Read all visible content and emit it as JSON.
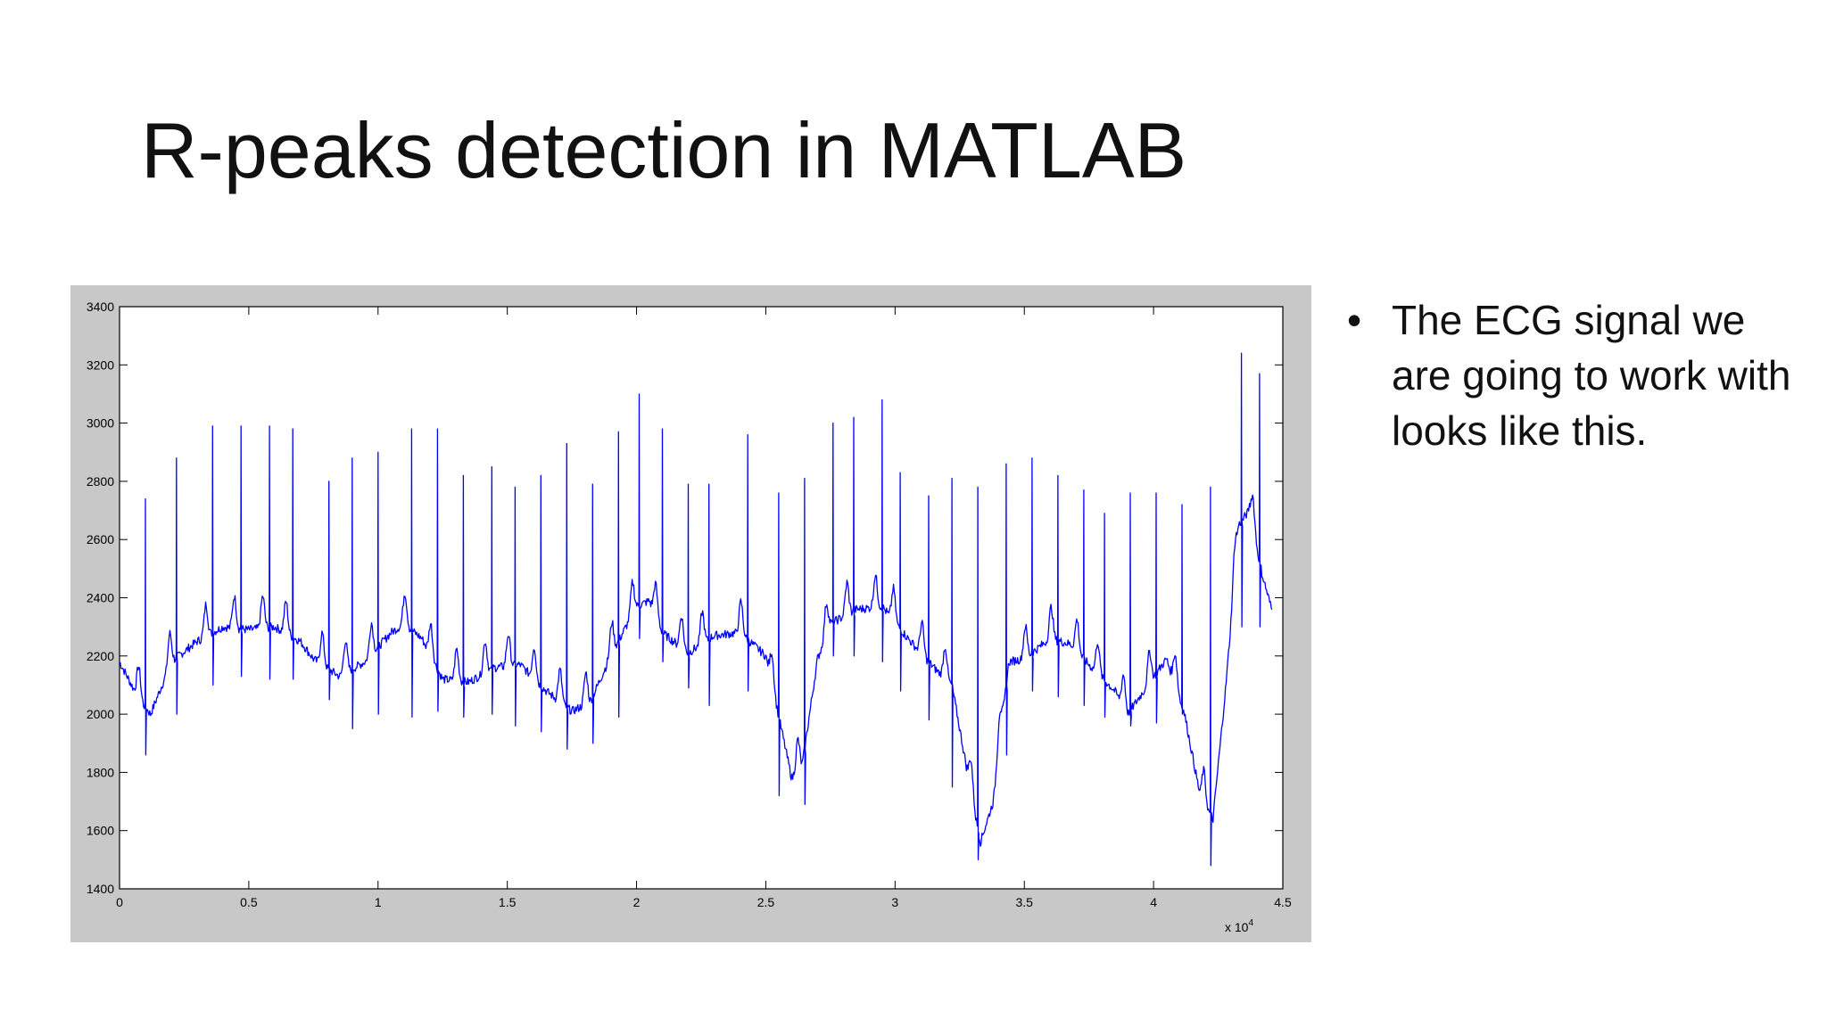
{
  "slide": {
    "title": "R-peaks detection in MATLAB",
    "bullets": [
      {
        "text": "The ECG signal we are going to work with looks like this."
      }
    ]
  },
  "chart_data": {
    "type": "line",
    "title": "",
    "xlabel": "",
    "ylabel": "",
    "xlim": [
      0,
      45000
    ],
    "ylim": [
      1400,
      3400
    ],
    "x_tick_labels": [
      "0",
      "0.5",
      "1",
      "1.5",
      "2",
      "2.5",
      "3",
      "3.5",
      "4",
      "4.5"
    ],
    "x_tick_values": [
      0,
      5000,
      10000,
      15000,
      20000,
      25000,
      30000,
      35000,
      40000,
      45000
    ],
    "x_exponent_label": "x 10",
    "x_exponent_power": "4",
    "y_tick_labels": [
      "1400",
      "1600",
      "1800",
      "2000",
      "2200",
      "2400",
      "2600",
      "2800",
      "3000",
      "3200",
      "3400"
    ],
    "y_tick_values": [
      1400,
      1600,
      1800,
      2000,
      2200,
      2400,
      2600,
      2800,
      3000,
      3200,
      3400
    ],
    "grid": false,
    "line_color": "#0000ff",
    "series": [
      {
        "baseline_points": [
          [
            0,
            2180
          ],
          [
            700,
            2060
          ],
          [
            1200,
            2000
          ],
          [
            2000,
            2180
          ],
          [
            3000,
            2250
          ],
          [
            4000,
            2300
          ],
          [
            5000,
            2290
          ],
          [
            6000,
            2300
          ],
          [
            7000,
            2250
          ],
          [
            7500,
            2190
          ],
          [
            8500,
            2130
          ],
          [
            9500,
            2180
          ],
          [
            10500,
            2280
          ],
          [
            11000,
            2310
          ],
          [
            11700,
            2260
          ],
          [
            12500,
            2120
          ],
          [
            13500,
            2110
          ],
          [
            14500,
            2160
          ],
          [
            15500,
            2170
          ],
          [
            16500,
            2080
          ],
          [
            17500,
            2010
          ],
          [
            18200,
            2040
          ],
          [
            19000,
            2200
          ],
          [
            20000,
            2370
          ],
          [
            20500,
            2390
          ],
          [
            21000,
            2280
          ],
          [
            22000,
            2210
          ],
          [
            23000,
            2270
          ],
          [
            24000,
            2280
          ],
          [
            25000,
            2200
          ],
          [
            25600,
            1950
          ],
          [
            26000,
            1780
          ],
          [
            26400,
            1820
          ],
          [
            27000,
            2190
          ],
          [
            27500,
            2310
          ],
          [
            28500,
            2360
          ],
          [
            29500,
            2370
          ],
          [
            30500,
            2260
          ],
          [
            31500,
            2160
          ],
          [
            32200,
            2100
          ],
          [
            32800,
            1800
          ],
          [
            33300,
            1560
          ],
          [
            33800,
            1700
          ],
          [
            34400,
            2180
          ],
          [
            35000,
            2190
          ],
          [
            36000,
            2260
          ],
          [
            36800,
            2240
          ],
          [
            37500,
            2170
          ],
          [
            38500,
            2080
          ],
          [
            39000,
            2000
          ],
          [
            39700,
            2090
          ],
          [
            40500,
            2190
          ],
          [
            41200,
            2000
          ],
          [
            41800,
            1720
          ],
          [
            42300,
            1640
          ],
          [
            42800,
            2100
          ],
          [
            43300,
            2650
          ],
          [
            43700,
            2700
          ],
          [
            44200,
            2480
          ],
          [
            44600,
            2350
          ]
        ],
        "r_peak_x": [
          1000,
          2200,
          3600,
          4700,
          5800,
          6700,
          8100,
          9000,
          10000,
          11300,
          12300,
          13300,
          14400,
          15300,
          16300,
          17300,
          18300,
          19300,
          20100,
          21000,
          22000,
          22800,
          24300,
          25500,
          26500,
          27600,
          28400,
          29500,
          30200,
          31300,
          32200,
          33200,
          34300,
          35300,
          36300,
          37300,
          38100,
          39100,
          40100,
          41100,
          42200,
          43400,
          44100
        ],
        "r_peak_y": [
          2740,
          2880,
          2990,
          2990,
          2990,
          2980,
          2800,
          2880,
          2900,
          2980,
          2980,
          2820,
          2850,
          2780,
          2820,
          2930,
          2790,
          2970,
          3100,
          2980,
          2790,
          2790,
          2960,
          2760,
          2810,
          3000,
          3020,
          3080,
          2830,
          2750,
          2810,
          2780,
          2860,
          2880,
          2820,
          2770,
          2690,
          2760,
          2760,
          2720,
          2780,
          3240,
          3170
        ],
        "q_dip_y": [
          1860,
          2000,
          2100,
          2130,
          2120,
          2120,
          2050,
          1950,
          2000,
          1990,
          2010,
          1990,
          2000,
          1960,
          1940,
          1880,
          1900,
          1990,
          2260,
          2180,
          2090,
          2030,
          2080,
          1720,
          1690,
          2200,
          2200,
          2180,
          2080,
          1980,
          1750,
          1500,
          1860,
          2080,
          2060,
          2030,
          1990,
          1960,
          1970,
          2000,
          1480,
          2300,
          2300
        ]
      }
    ]
  }
}
